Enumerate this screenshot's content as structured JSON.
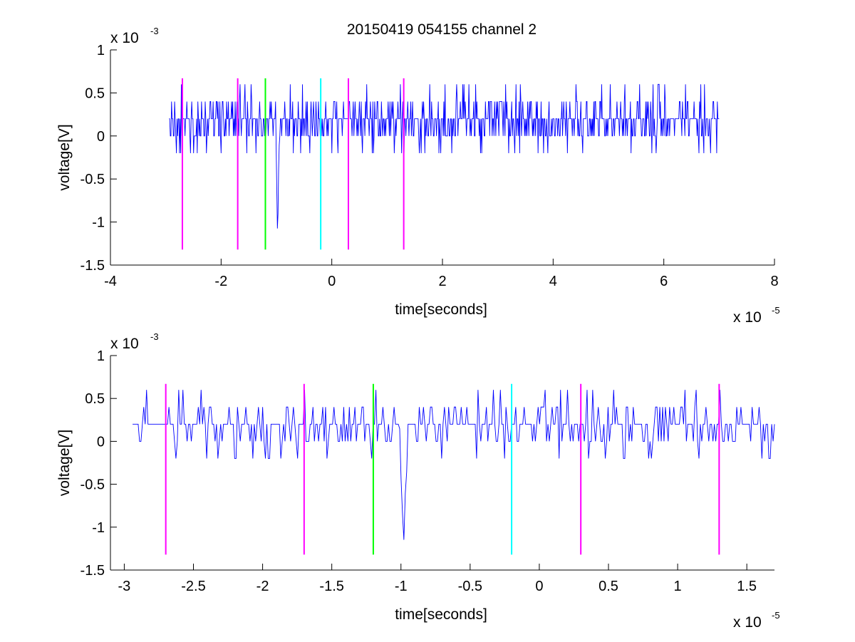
{
  "title": "20150419 054155 channel 2",
  "chart_data": [
    {
      "type": "line",
      "title": "20150419 054155 channel 2",
      "xlabel": "time[seconds]",
      "ylabel": "voltage[V]",
      "x_multiplier": "x 10",
      "x_exponent": "-5",
      "y_multiplier": "x 10",
      "y_exponent": "-3",
      "xlim": [
        -4,
        8
      ],
      "ylim": [
        -1.5,
        1
      ],
      "xticks": [
        -4,
        -2,
        0,
        2,
        4,
        6,
        8
      ],
      "xtick_labels": [
        "-4",
        "-2",
        "0",
        "2",
        "4",
        "6",
        "8"
      ],
      "yticks": [
        -1.5,
        -1,
        -0.5,
        0,
        0.5,
        1
      ],
      "ytick_labels": [
        "-1.5",
        "-1",
        "-0.5",
        "0",
        "0.5",
        "1"
      ],
      "grid": false,
      "series": [
        {
          "color": "#0000ff",
          "x_start": -2.94,
          "x_end": 7.0,
          "baseline": 0.2,
          "levels": [
            -0.2,
            0,
            0.2,
            0.4,
            0.6
          ],
          "dip": {
            "x": -0.98,
            "y": -1.2
          }
        }
      ],
      "vertical_markers": [
        {
          "x": -2.7,
          "color": "#ff00ff",
          "y_from": -1.32,
          "y_to": 0.67
        },
        {
          "x": -1.7,
          "color": "#ff00ff",
          "y_from": -1.32,
          "y_to": 0.67
        },
        {
          "x": -1.2,
          "color": "#00ff00",
          "y_from": -1.32,
          "y_to": 0.67
        },
        {
          "x": -0.2,
          "color": "#00ffff",
          "y_from": -1.32,
          "y_to": 0.67
        },
        {
          "x": 0.3,
          "color": "#ff00ff",
          "y_from": -1.32,
          "y_to": 0.67
        },
        {
          "x": 1.3,
          "color": "#ff00ff",
          "y_from": -1.32,
          "y_to": 0.67
        }
      ]
    },
    {
      "type": "line",
      "title": "",
      "xlabel": "time[seconds]",
      "ylabel": "voltage[V]",
      "x_multiplier": "x 10",
      "x_exponent": "-5",
      "y_multiplier": "x 10",
      "y_exponent": "-3",
      "xlim": [
        -3.1,
        1.7
      ],
      "ylim": [
        -1.5,
        1
      ],
      "xticks": [
        -3,
        -2.5,
        -2,
        -1.5,
        -1,
        -0.5,
        0,
        0.5,
        1,
        1.5
      ],
      "xtick_labels": [
        "-3",
        "-2.5",
        "-2",
        "-1.5",
        "-1",
        "-0.5",
        "0",
        "0.5",
        "1",
        "1.5"
      ],
      "yticks": [
        -1.5,
        -1,
        -0.5,
        0,
        0.5,
        1
      ],
      "ytick_labels": [
        "-1.5",
        "-1",
        "-0.5",
        "0",
        "0.5",
        "1"
      ],
      "grid": false,
      "series": [
        {
          "color": "#0000ff",
          "x_start": -2.94,
          "x_end": 1.7,
          "baseline": 0.2,
          "levels": [
            -0.2,
            0,
            0.2,
            0.4,
            0.6
          ],
          "dip": {
            "x": -0.98,
            "y": -1.2
          }
        }
      ],
      "vertical_markers": [
        {
          "x": -2.7,
          "color": "#ff00ff",
          "y_from": -1.32,
          "y_to": 0.67
        },
        {
          "x": -1.7,
          "color": "#ff00ff",
          "y_from": -1.32,
          "y_to": 0.67
        },
        {
          "x": -1.2,
          "color": "#00ff00",
          "y_from": -1.32,
          "y_to": 0.67
        },
        {
          "x": -0.2,
          "color": "#00ffff",
          "y_from": -1.32,
          "y_to": 0.67
        },
        {
          "x": 0.3,
          "color": "#ff00ff",
          "y_from": -1.32,
          "y_to": 0.67
        },
        {
          "x": 1.3,
          "color": "#ff00ff",
          "y_from": -1.32,
          "y_to": 0.67
        }
      ]
    }
  ]
}
